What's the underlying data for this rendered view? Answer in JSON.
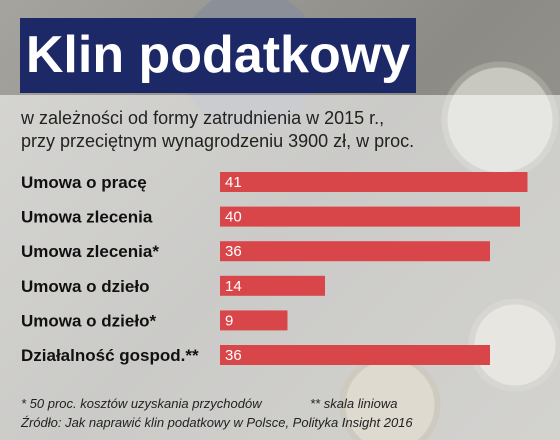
{
  "title": "Klin podatkowy",
  "subtitle_line1": "w zależności od formy zatrudnienia w 2015 r.,",
  "subtitle_line2": "przy przeciętnym wynagrodzeniu 3900 zł, w proc.",
  "footnote_asterisk": "* 50 proc. kosztów uzyskania przychodów",
  "footnote_double_asterisk": "** skala liniowa",
  "source": "Źródło: Jak naprawić klin podatkowy w Polsce, Polityka Insight 2016",
  "colors": {
    "title_background": "#1c2966",
    "bar": "#d9464a"
  },
  "chart_data": {
    "type": "bar",
    "orientation": "horizontal",
    "categories": [
      "Umowa o pracę",
      "Umowa zlecenia",
      "Umowa zlecenia*",
      "Umowa o dzieło",
      "Umowa o dzieło*",
      "Działalność gospod.**"
    ],
    "values": [
      41,
      40,
      36,
      14,
      9,
      36
    ],
    "data_labels": [
      "41",
      "40",
      "36",
      "14",
      "9",
      "36"
    ],
    "xlim": [
      0,
      42
    ],
    "grid": false,
    "legend": "none"
  }
}
